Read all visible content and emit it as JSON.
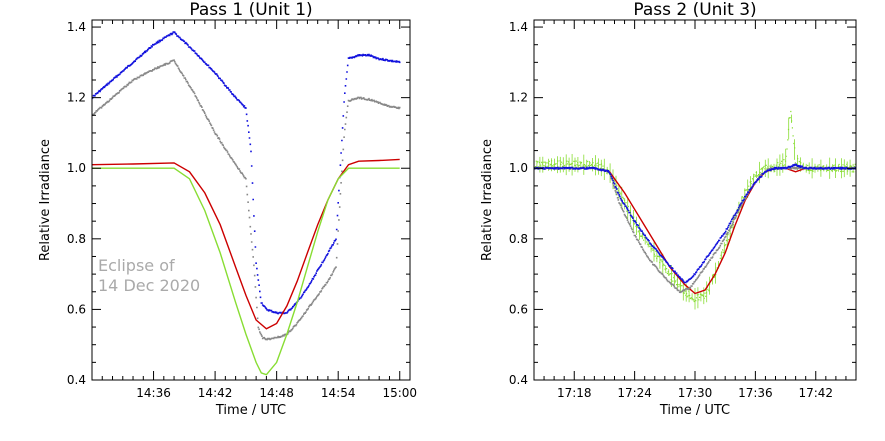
{
  "chart_data": [
    {
      "type": "line",
      "title": "Pass 1 (Unit 1)",
      "xlabel": "Time / UTC",
      "ylabel": "Relative Irradiance",
      "x_unit": "minutes past 14:00 UTC",
      "xlim": [
        30,
        61
      ],
      "ylim": [
        0.4,
        1.42
      ],
      "x_ticks": [
        36,
        42,
        48,
        54,
        60
      ],
      "x_tick_labels": [
        "14:36",
        "14:42",
        "14:48",
        "14:54",
        "15:00"
      ],
      "y_ticks": [
        0.4,
        0.6,
        0.8,
        1.0,
        1.2,
        1.4
      ],
      "y_tick_labels": [
        "0.4",
        "0.6",
        "0.8",
        "1.0",
        "1.2",
        "1.4"
      ],
      "annotation": [
        "Eclipse of",
        "14 Dec 2020"
      ],
      "grid": false,
      "series": [
        {
          "color": "#1111dd",
          "style": "dots",
          "x": [
            30,
            32,
            34,
            36,
            38,
            40,
            42,
            44,
            45,
            45.5,
            46,
            46.5,
            47,
            48,
            49,
            50,
            51,
            52,
            53,
            53.8,
            54.2,
            54.6,
            55,
            56,
            57,
            58,
            59,
            60
          ],
          "y": [
            1.2,
            1.25,
            1.3,
            1.35,
            1.385,
            1.33,
            1.27,
            1.2,
            1.17,
            1.05,
            0.73,
            0.62,
            0.6,
            0.59,
            0.59,
            0.62,
            0.66,
            0.71,
            0.76,
            0.8,
            1.0,
            1.2,
            1.31,
            1.32,
            1.32,
            1.31,
            1.305,
            1.3
          ]
        },
        {
          "color": "#888888",
          "style": "dots",
          "x": [
            30,
            32,
            34,
            36,
            38,
            40,
            42,
            44,
            45,
            45.8,
            46.2,
            46.6,
            47,
            48,
            49,
            50,
            51,
            52,
            53,
            53.8,
            54.2,
            54.6,
            55,
            56,
            57,
            58,
            59,
            60
          ],
          "y": [
            1.15,
            1.2,
            1.25,
            1.28,
            1.305,
            1.21,
            1.1,
            1.01,
            0.97,
            0.72,
            0.55,
            0.52,
            0.515,
            0.52,
            0.53,
            0.56,
            0.6,
            0.64,
            0.68,
            0.72,
            0.92,
            1.1,
            1.19,
            1.2,
            1.195,
            1.185,
            1.175,
            1.17
          ]
        },
        {
          "color": "#cc0000",
          "style": "line",
          "x": [
            30,
            34,
            38,
            39.5,
            41,
            42.5,
            44,
            45,
            46,
            47,
            48,
            49,
            50,
            51,
            52,
            53,
            54,
            55,
            56,
            58,
            60
          ],
          "y": [
            1.01,
            1.012,
            1.015,
            0.99,
            0.93,
            0.84,
            0.72,
            0.64,
            0.57,
            0.545,
            0.56,
            0.61,
            0.68,
            0.76,
            0.84,
            0.91,
            0.97,
            1.01,
            1.02,
            1.022,
            1.025
          ]
        },
        {
          "color": "#88dd33",
          "style": "line",
          "x": [
            30,
            34,
            38,
            39.5,
            41,
            42.5,
            44,
            45,
            46,
            46.5,
            47,
            48,
            49,
            50,
            51,
            52,
            53,
            54,
            55,
            56,
            58,
            60
          ],
          "y": [
            1.0,
            1.0,
            1.0,
            0.97,
            0.88,
            0.76,
            0.62,
            0.53,
            0.45,
            0.42,
            0.415,
            0.45,
            0.53,
            0.62,
            0.72,
            0.82,
            0.91,
            0.97,
            1.0,
            1.0,
            1.0,
            1.0
          ]
        }
      ]
    },
    {
      "type": "line",
      "title": "Pass 2 (Unit 3)",
      "xlabel": "Time / UTC",
      "ylabel": "Relative Irradiance",
      "x_unit": "minutes past 17:00 UTC",
      "xlim": [
        14,
        46
      ],
      "ylim": [
        0.4,
        1.42
      ],
      "x_ticks": [
        18,
        24,
        30,
        36,
        42
      ],
      "x_tick_labels": [
        "17:18",
        "17:24",
        "17:30",
        "17:36",
        "17:42"
      ],
      "y_ticks": [
        0.4,
        0.6,
        0.8,
        1.0,
        1.2,
        1.4
      ],
      "y_tick_labels": [
        "0.4",
        "0.6",
        "0.8",
        "1.0",
        "1.2",
        "1.4"
      ],
      "grid": false,
      "series": [
        {
          "color": "#88dd33",
          "style": "scatter-band",
          "x": [
            14,
            17,
            20,
            21.5,
            23,
            24.5,
            26,
            27.5,
            29,
            30,
            31,
            32,
            33,
            34,
            35,
            36,
            37,
            38,
            39,
            39.5,
            40,
            41,
            43,
            46
          ],
          "y": [
            1.01,
            1.01,
            1.01,
            0.99,
            0.9,
            0.82,
            0.76,
            0.7,
            0.65,
            0.63,
            0.64,
            0.7,
            0.78,
            0.86,
            0.93,
            0.98,
            1.0,
            1.0,
            1.02,
            1.17,
            1.02,
            1.0,
            1.0,
            1.0
          ]
        },
        {
          "color": "#cc0000",
          "style": "line",
          "x": [
            14,
            17,
            20,
            21.5,
            23,
            24.5,
            26,
            27.5,
            29,
            30,
            31,
            32,
            33,
            34,
            35,
            36,
            37,
            38,
            39,
            40,
            41,
            43,
            46
          ],
          "y": [
            1.0,
            1.0,
            1.0,
            0.99,
            0.93,
            0.86,
            0.79,
            0.72,
            0.67,
            0.645,
            0.655,
            0.7,
            0.76,
            0.84,
            0.91,
            0.96,
            0.99,
            1.0,
            1.0,
            0.99,
            1.0,
            1.0,
            1.0
          ]
        },
        {
          "color": "#888888",
          "style": "dots",
          "x": [
            14,
            17,
            20,
            21.5,
            22.5,
            24,
            25.5,
            27,
            28.5,
            29.5,
            30.5,
            31.5,
            32.5,
            33.5,
            34.5,
            35.5,
            36.5,
            37.5,
            39,
            40,
            41,
            43,
            46
          ],
          "y": [
            1.0,
            1.0,
            1.0,
            0.99,
            0.9,
            0.81,
            0.74,
            0.69,
            0.65,
            0.66,
            0.7,
            0.74,
            0.78,
            0.83,
            0.89,
            0.94,
            0.98,
            1.0,
            1.0,
            1.0,
            1.0,
            1.0,
            1.0
          ]
        },
        {
          "color": "#1111dd",
          "style": "dots",
          "x": [
            14,
            17,
            20,
            21.5,
            22.5,
            24,
            25.5,
            27,
            28.5,
            29,
            30,
            31,
            32,
            33,
            34,
            35,
            36,
            37,
            38,
            39,
            40,
            41,
            43,
            46
          ],
          "y": [
            1.0,
            1.0,
            1.0,
            0.99,
            0.92,
            0.85,
            0.79,
            0.74,
            0.69,
            0.675,
            0.7,
            0.74,
            0.78,
            0.82,
            0.87,
            0.92,
            0.96,
            0.99,
            1.0,
            1.0,
            1.01,
            1.0,
            1.0,
            1.0
          ]
        }
      ]
    }
  ]
}
